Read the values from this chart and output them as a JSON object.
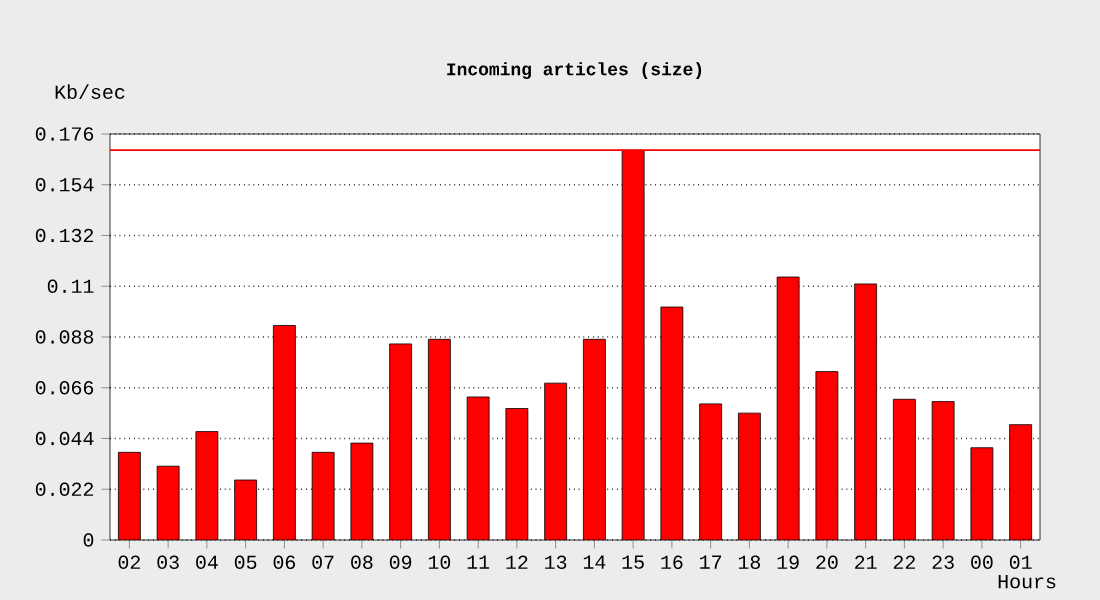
{
  "chart_data": {
    "type": "bar",
    "title": "Incoming articles (size)",
    "xlabel": "Hours",
    "ylabel": "Kb/sec",
    "categories": [
      "02",
      "03",
      "04",
      "05",
      "06",
      "07",
      "08",
      "09",
      "10",
      "11",
      "12",
      "13",
      "14",
      "15",
      "16",
      "17",
      "18",
      "19",
      "20",
      "21",
      "22",
      "23",
      "00",
      "01"
    ],
    "values": [
      0.038,
      0.032,
      0.047,
      0.026,
      0.093,
      0.038,
      0.042,
      0.085,
      0.087,
      0.062,
      0.057,
      0.068,
      0.087,
      0.169,
      0.101,
      0.059,
      0.055,
      0.114,
      0.073,
      0.111,
      0.061,
      0.06,
      0.04,
      0.05
    ],
    "color": "#ff0000",
    "ylim": [
      0,
      0.176
    ],
    "yticks": [
      0,
      0.022,
      0.044,
      0.066,
      0.088,
      0.11,
      0.132,
      0.154,
      0.176
    ],
    "grid": "y",
    "ref_lines": [
      {
        "axis": "y",
        "value": 0.169,
        "color": "#ff0000"
      }
    ]
  }
}
